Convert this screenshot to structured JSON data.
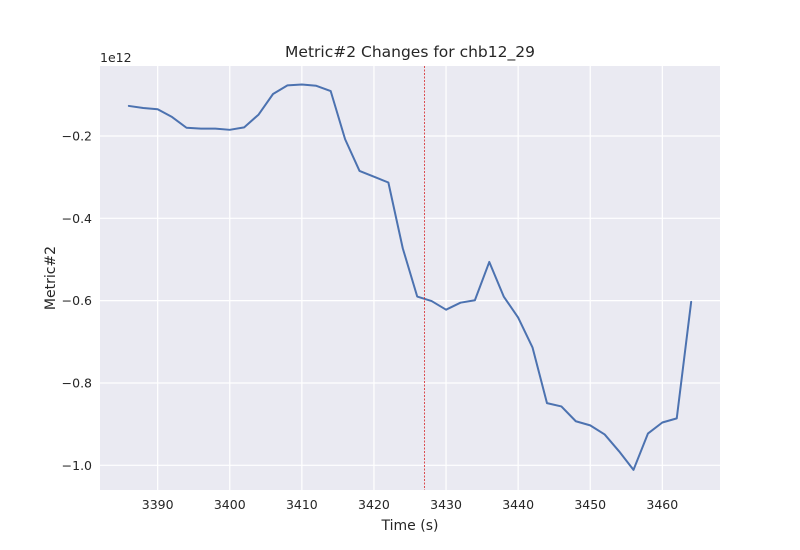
{
  "chart_data": {
    "type": "line",
    "title": "Metric#2 Changes for chb12_29",
    "xlabel": "Time (s)",
    "ylabel": "Metric#2",
    "y_offset_label": "1e12",
    "xlim": [
      3382,
      3468
    ],
    "ylim": [
      -1.06,
      -0.03
    ],
    "x_ticks": [
      3390,
      3400,
      3410,
      3420,
      3430,
      3440,
      3450,
      3460
    ],
    "x_tick_labels": [
      "3390",
      "3400",
      "3410",
      "3420",
      "3430",
      "3440",
      "3450",
      "3460"
    ],
    "y_ticks": [
      -0.2,
      -0.4,
      -0.6,
      -0.8,
      -1.0
    ],
    "y_tick_labels": [
      "−0.2",
      "−0.4",
      "−0.6",
      "−0.8",
      "−1.0"
    ],
    "grid": true,
    "vline_x": 3427,
    "colors": {
      "background": "#eaeaf2",
      "grid": "#ffffff",
      "line": "#4c72b0",
      "vline": "#d62728"
    },
    "series": [
      {
        "x": [
          3386,
          3388,
          3390,
          3392,
          3394,
          3396,
          3398,
          3400,
          3402,
          3404,
          3406,
          3408,
          3410,
          3412,
          3414,
          3416,
          3418,
          3420,
          3422,
          3424,
          3426,
          3428,
          3430,
          3432,
          3434,
          3436,
          3438,
          3440,
          3442,
          3444,
          3446,
          3448,
          3450,
          3452,
          3454,
          3456,
          3458,
          3460,
          3462,
          3464
        ],
        "values": [
          -0.127,
          -0.132,
          -0.135,
          -0.154,
          -0.18,
          -0.182,
          -0.182,
          -0.185,
          -0.179,
          -0.148,
          -0.098,
          -0.077,
          -0.075,
          -0.078,
          -0.091,
          -0.208,
          -0.285,
          -0.299,
          -0.313,
          -0.473,
          -0.59,
          -0.601,
          -0.622,
          -0.605,
          -0.599,
          -0.506,
          -0.59,
          -0.641,
          -0.714,
          -0.849,
          -0.857,
          -0.893,
          -0.903,
          -0.925,
          -0.966,
          -1.011,
          -0.923,
          -0.896,
          -0.886,
          -0.603
        ]
      }
    ]
  }
}
